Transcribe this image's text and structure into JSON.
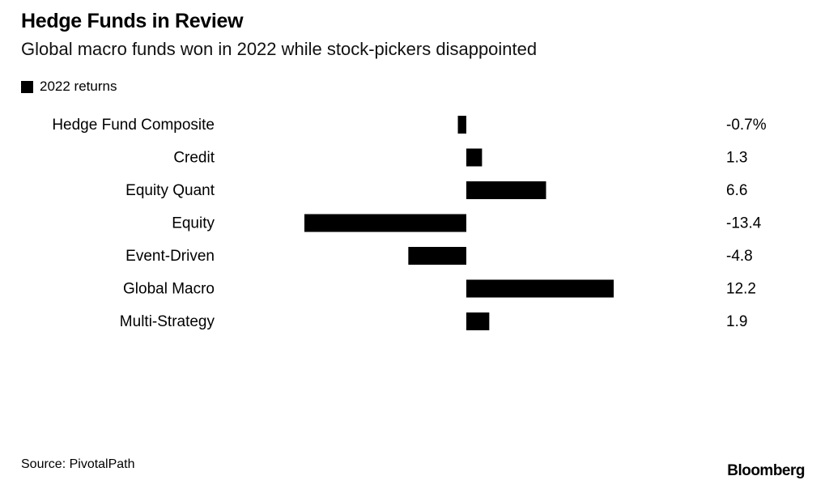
{
  "header": {
    "title": "Hedge Funds in Review",
    "subtitle": "Global macro funds won in 2022 while stock-pickers disappointed"
  },
  "legend": {
    "label": "2022 returns"
  },
  "footer": {
    "source": "Source: PivotalPath",
    "brand": "Bloomberg"
  },
  "chart_data": {
    "type": "bar",
    "orientation": "horizontal",
    "categories": [
      "Hedge Fund Composite",
      "Credit",
      "Equity Quant",
      "Equity",
      "Event-Driven",
      "Global Macro",
      "Multi-Strategy"
    ],
    "series": [
      {
        "name": "2022 returns",
        "values": [
          -0.7,
          1.3,
          6.6,
          -13.4,
          -4.8,
          12.2,
          1.9
        ]
      }
    ],
    "value_labels": [
      "-0.7%",
      "1.3",
      "6.6",
      "-13.4",
      "-4.8",
      "12.2",
      "1.9"
    ],
    "xlim": [
      -13.4,
      12.2
    ],
    "grid": false,
    "bar_color": "#000000"
  }
}
